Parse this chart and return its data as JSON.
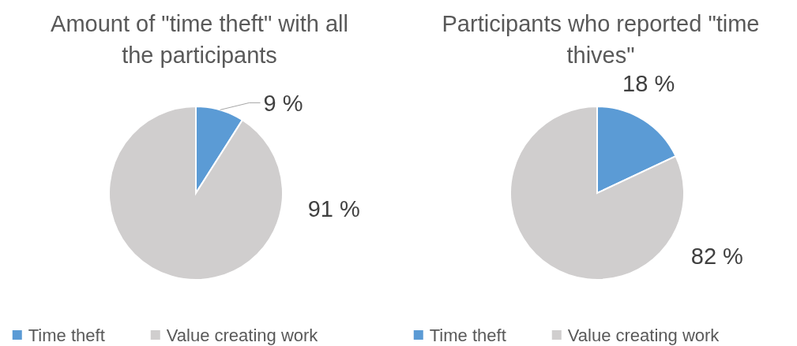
{
  "chart_data": [
    {
      "type": "pie",
      "title": "Amount of \"time theft\" with all the participants",
      "categories": [
        "Time theft",
        "Value creating work"
      ],
      "values": [
        9,
        91
      ],
      "colors": [
        "#5b9bd5",
        "#d0cece"
      ],
      "value_labels": [
        "9 %",
        "91 %"
      ],
      "legend": "bottom"
    },
    {
      "type": "pie",
      "title": "Participants who reported \"time thives\"",
      "categories": [
        "Time theft",
        "Value creating work"
      ],
      "values": [
        18,
        82
      ],
      "colors": [
        "#5b9bd5",
        "#d0cece"
      ],
      "value_labels": [
        "18 %",
        "82 %"
      ],
      "legend": "bottom"
    }
  ]
}
